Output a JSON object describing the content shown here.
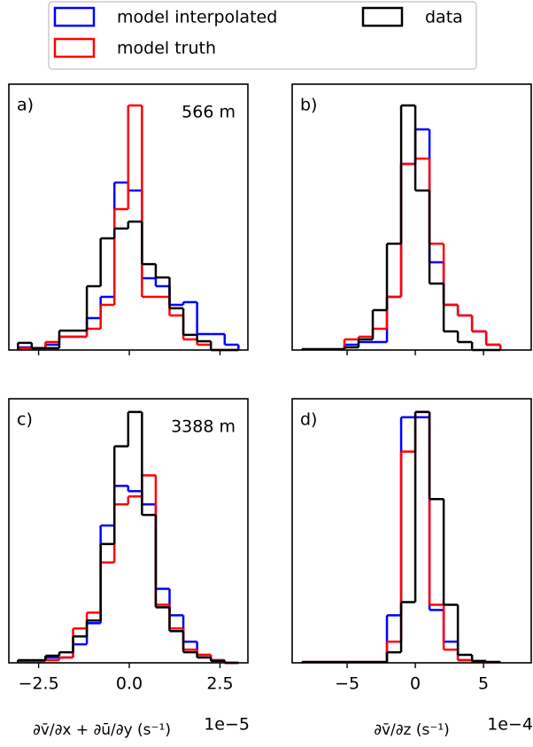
{
  "chart_data": [
    {
      "type": "histogram",
      "panel_label": "a)",
      "depth_label": "566 m",
      "bins": [
        -3.07,
        -2.69,
        -2.31,
        -1.93,
        -1.55,
        -1.17,
        -0.79,
        -0.41,
        -0.03,
        0.35,
        0.73,
        1.11,
        1.49,
        1.87,
        2.25,
        2.63,
        3.01
      ],
      "xlim": [
        -3.32,
        3.27
      ],
      "ylim": [
        0,
        1
      ],
      "xticks": [
        -2.5,
        0,
        2.5
      ],
      "series": [
        {
          "name": "model interpolated",
          "color": "#0000ff",
          "values": [
            0.01,
            0.007,
            0.02,
            0.05,
            0.05,
            0.12,
            0.2,
            0.63,
            0.6,
            0.27,
            0.24,
            0.17,
            0.18,
            0.06,
            0.06,
            0.02
          ]
        },
        {
          "name": "model truth",
          "color": "#ff0000",
          "values": [
            0.007,
            0.007,
            0.03,
            0.05,
            0.05,
            0.08,
            0.17,
            0.53,
            0.92,
            0.2,
            0.2,
            0.13,
            0.04,
            0.02,
            0,
            0
          ]
        },
        {
          "name": "data",
          "color": "#000000",
          "values": [
            0.027,
            0.007,
            0.007,
            0.073,
            0.073,
            0.24,
            0.42,
            0.457,
            0.483,
            0.323,
            0.273,
            0.157,
            0.057,
            0.033,
            0,
            0
          ]
        }
      ]
    },
    {
      "type": "histogram",
      "panel_label": "b)",
      "bins": [
        -8.32,
        -7.28,
        -6.24,
        -5.2,
        -4.16,
        -3.12,
        -2.08,
        -1.04,
        0,
        1.04,
        2.08,
        3.12,
        4.16,
        5.2,
        6.24
      ],
      "xlim": [
        -9.03,
        8.5
      ],
      "ylim": [
        0,
        1
      ],
      "xticks": [
        -5,
        0,
        5
      ],
      "series": [
        {
          "name": "model interpolated",
          "color": "#0000ff",
          "values": [
            0.003,
            0.003,
            0.003,
            0.02,
            0.03,
            0.03,
            0.2,
            0.7,
            0.83,
            0.33,
            0.17,
            0.13,
            0.07,
            0.02
          ]
        },
        {
          "name": "model truth",
          "color": "#ff0000",
          "values": [
            0.003,
            0.003,
            0.003,
            0.04,
            0.05,
            0.08,
            0.2,
            0.7,
            0.72,
            0.4,
            0.17,
            0.13,
            0.07,
            0.02
          ]
        },
        {
          "name": "data",
          "color": "#000000",
          "values": [
            0.003,
            0.003,
            0.003,
            0.01,
            0.04,
            0.15,
            0.4,
            0.92,
            0.6,
            0.25,
            0.07,
            0.03,
            0,
            0
          ]
        }
      ]
    },
    {
      "type": "histogram",
      "panel_label": "c)",
      "depth_label": "3388 m",
      "xlabel": "∂v̄/∂x + ∂ū/∂y (s⁻¹)",
      "offset_text": "1e−5",
      "bins": [
        -3.07,
        -2.69,
        -2.31,
        -1.93,
        -1.55,
        -1.17,
        -0.79,
        -0.41,
        -0.03,
        0.35,
        0.73,
        1.11,
        1.49,
        1.87,
        2.25,
        2.63,
        3.01
      ],
      "xlim": [
        -3.32,
        3.27
      ],
      "ylim": [
        0,
        1
      ],
      "xticks": [
        {
          "value": -2.5,
          "label": "−2.5"
        },
        {
          "value": 0,
          "label": "0.0"
        },
        {
          "value": 2.5,
          "label": "2.5"
        }
      ],
      "series": [
        {
          "name": "model interpolated",
          "color": "#0000ff",
          "values": [
            0.007,
            0.007,
            0.02,
            0.02,
            0.07,
            0.15,
            0.52,
            0.67,
            0.65,
            0.6,
            0.28,
            0.18,
            0.08,
            0.03,
            0.01,
            0
          ]
        },
        {
          "name": "model truth",
          "color": "#ff0000",
          "values": [
            0.007,
            0.007,
            0.01,
            0.02,
            0.13,
            0.19,
            0.38,
            0.6,
            0.63,
            0.71,
            0.22,
            0.13,
            0.05,
            0.03,
            0.01,
            0
          ]
        },
        {
          "name": "data",
          "color": "#000000",
          "values": [
            0.01,
            0.01,
            0.027,
            0.04,
            0.1,
            0.16,
            0.45,
            0.82,
            0.95,
            0.56,
            0.21,
            0.12,
            0.04,
            0.02,
            0.007,
            0
          ]
        }
      ]
    },
    {
      "type": "histogram",
      "panel_label": "d)",
      "xlabel": "∂v̄/∂z (s⁻¹)",
      "offset_text": "1e−4",
      "bins": [
        -8.32,
        -7.28,
        -6.24,
        -5.2,
        -4.16,
        -3.12,
        -2.08,
        -1.04,
        0,
        1.04,
        2.08,
        3.12,
        4.16,
        5.2,
        6.24
      ],
      "xlim": [
        -9.03,
        8.5
      ],
      "ylim": [
        0,
        1
      ],
      "xticks": [
        {
          "value": -5,
          "label": "−5"
        },
        {
          "value": 0,
          "label": "0"
        },
        {
          "value": 5,
          "label": "5"
        }
      ],
      "series": [
        {
          "name": "model interpolated",
          "color": "#0000ff",
          "values": [
            0.003,
            0.003,
            0.003,
            0.003,
            0.003,
            0.003,
            0.18,
            0.93,
            0.93,
            0.2,
            0.08,
            0.01,
            0.003,
            0.003
          ]
        },
        {
          "name": "model truth",
          "color": "#ff0000",
          "values": [
            0.003,
            0.003,
            0.003,
            0.003,
            0.003,
            0.003,
            0.08,
            0.8,
            0.95,
            0.22,
            0.05,
            0.01,
            0.003,
            0.003
          ]
        },
        {
          "name": "data",
          "color": "#000000",
          "values": [
            0.003,
            0.003,
            0.003,
            0.003,
            0.003,
            0.003,
            0.04,
            0.23,
            0.95,
            0.62,
            0.22,
            0.03,
            0.007,
            0.003
          ]
        }
      ]
    }
  ]
}
